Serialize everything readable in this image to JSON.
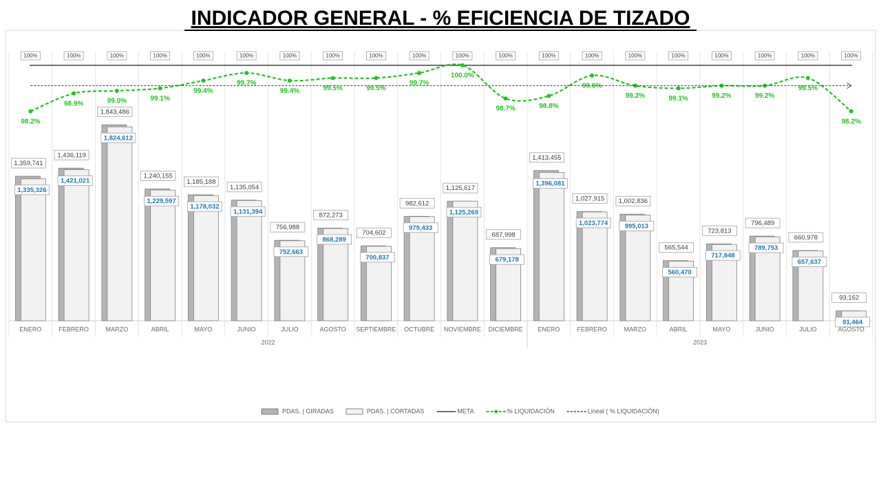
{
  "chart_data": {
    "type": "bar-line",
    "title": "INDICADOR GENERAL - % EFICIENCIA DE TIZADO",
    "categories": [
      "ENERO",
      "FEBRERO",
      "MARZO",
      "ABRIL",
      "MAYO",
      "JUNIO",
      "JULIO",
      "AGOSTO",
      "SEPTIEMBRE",
      "OCTUBRE",
      "NOVIEMBRE",
      "DICIEMBRE",
      "ENERO",
      "FEBRERO",
      "MARZO",
      "ABRIL",
      "MAYO",
      "JUNIO",
      "JULIO",
      "AGOSTO"
    ],
    "groups": [
      {
        "label": "2022",
        "count": 12
      },
      {
        "label": "2023",
        "count": 8
      }
    ],
    "ylim": [
      0,
      2500000
    ],
    "y2lim": [
      90,
      100.4
    ],
    "series": [
      {
        "name": "PDAS. | GIRADAS",
        "type": "bar",
        "color": "#b4b4b4",
        "values": [
          1359741,
          1436119,
          1843486,
          1240155,
          1185188,
          1135054,
          756988,
          872273,
          704602,
          982612,
          1125617,
          687998,
          1413455,
          1027915,
          1002836,
          565544,
          723813,
          796489,
          660978,
          93162
        ],
        "value_labels": [
          "1,359,741",
          "1,436,119",
          "1,843,486",
          "1,240,155",
          "1,185,188",
          "1,135,054",
          "756,988",
          "872,273",
          "704,602",
          "982,612",
          "1,125,617",
          "687,998",
          "1,413,455",
          "1,027,915",
          "1,002,836",
          "565,544",
          "723,813",
          "796,489",
          "660,978",
          "93,162"
        ]
      },
      {
        "name": "PDAS. | CORTADAS",
        "type": "bar",
        "color": "#f2f2f2",
        "label_color": "#1f77b4",
        "values": [
          1335326,
          1421021,
          1824612,
          1229597,
          1178032,
          1131394,
          752663,
          868289,
          700837,
          979433,
          1125269,
          679178,
          1396081,
          1023774,
          995013,
          560470,
          717848,
          789753,
          657637,
          91464
        ],
        "value_labels": [
          "1,335,326",
          "1,421,021",
          "1,824,612",
          "1,229,597",
          "1,178,032",
          "1,131,394",
          "752,663",
          "868,289",
          "700,837",
          "979,433",
          "1,125,269",
          "679,178",
          "1,396,081",
          "1,023,774",
          "995,013",
          "560,470",
          "717,848",
          "789,753",
          "657,637",
          "91,464"
        ]
      },
      {
        "name": "META",
        "type": "line",
        "axis": "y2",
        "color": "#404040",
        "values": [
          100,
          100,
          100,
          100,
          100,
          100,
          100,
          100,
          100,
          100,
          100,
          100,
          100,
          100,
          100,
          100,
          100,
          100,
          100,
          100
        ],
        "value_labels": [
          "100%",
          "100%",
          "100%",
          "100%",
          "100%",
          "100%",
          "100%",
          "100%",
          "100%",
          "100%",
          "100%",
          "100%",
          "100%",
          "100%",
          "100%",
          "100%",
          "100%",
          "100%",
          "100%",
          "100%"
        ]
      },
      {
        "name": "% LIQUIDACIÓN",
        "type": "line",
        "axis": "y2",
        "color": "#22c322",
        "dashed": true,
        "smooth": true,
        "values": [
          98.2,
          98.9,
          99.0,
          99.1,
          99.4,
          99.7,
          99.4,
          99.5,
          99.5,
          99.7,
          100.0,
          98.7,
          98.8,
          99.6,
          99.2,
          99.1,
          99.2,
          99.2,
          99.5,
          98.2
        ],
        "value_labels": [
          "98.2%",
          "98.9%",
          "99.0%",
          "99.1%",
          "99.4%",
          "99.7%",
          "99.4%",
          "99.5%",
          "99.5%",
          "99.7%",
          "100.0%",
          "98.7%",
          "98.8%",
          "99.6%",
          "99.2%",
          "99.1%",
          "99.2%",
          "99.2%",
          "99.5%",
          "98.2%"
        ]
      },
      {
        "name": "Lineal ( % LIQUIDACIÓN)",
        "type": "trend",
        "axis": "y2",
        "color": "#404040",
        "values": [
          99.2,
          99.2,
          99.2,
          99.2,
          99.2,
          99.2,
          99.2,
          99.2,
          99.2,
          99.2,
          99.2,
          99.2,
          99.2,
          99.2,
          99.2,
          99.2,
          99.2,
          99.2,
          99.2,
          99.2
        ]
      }
    ]
  }
}
